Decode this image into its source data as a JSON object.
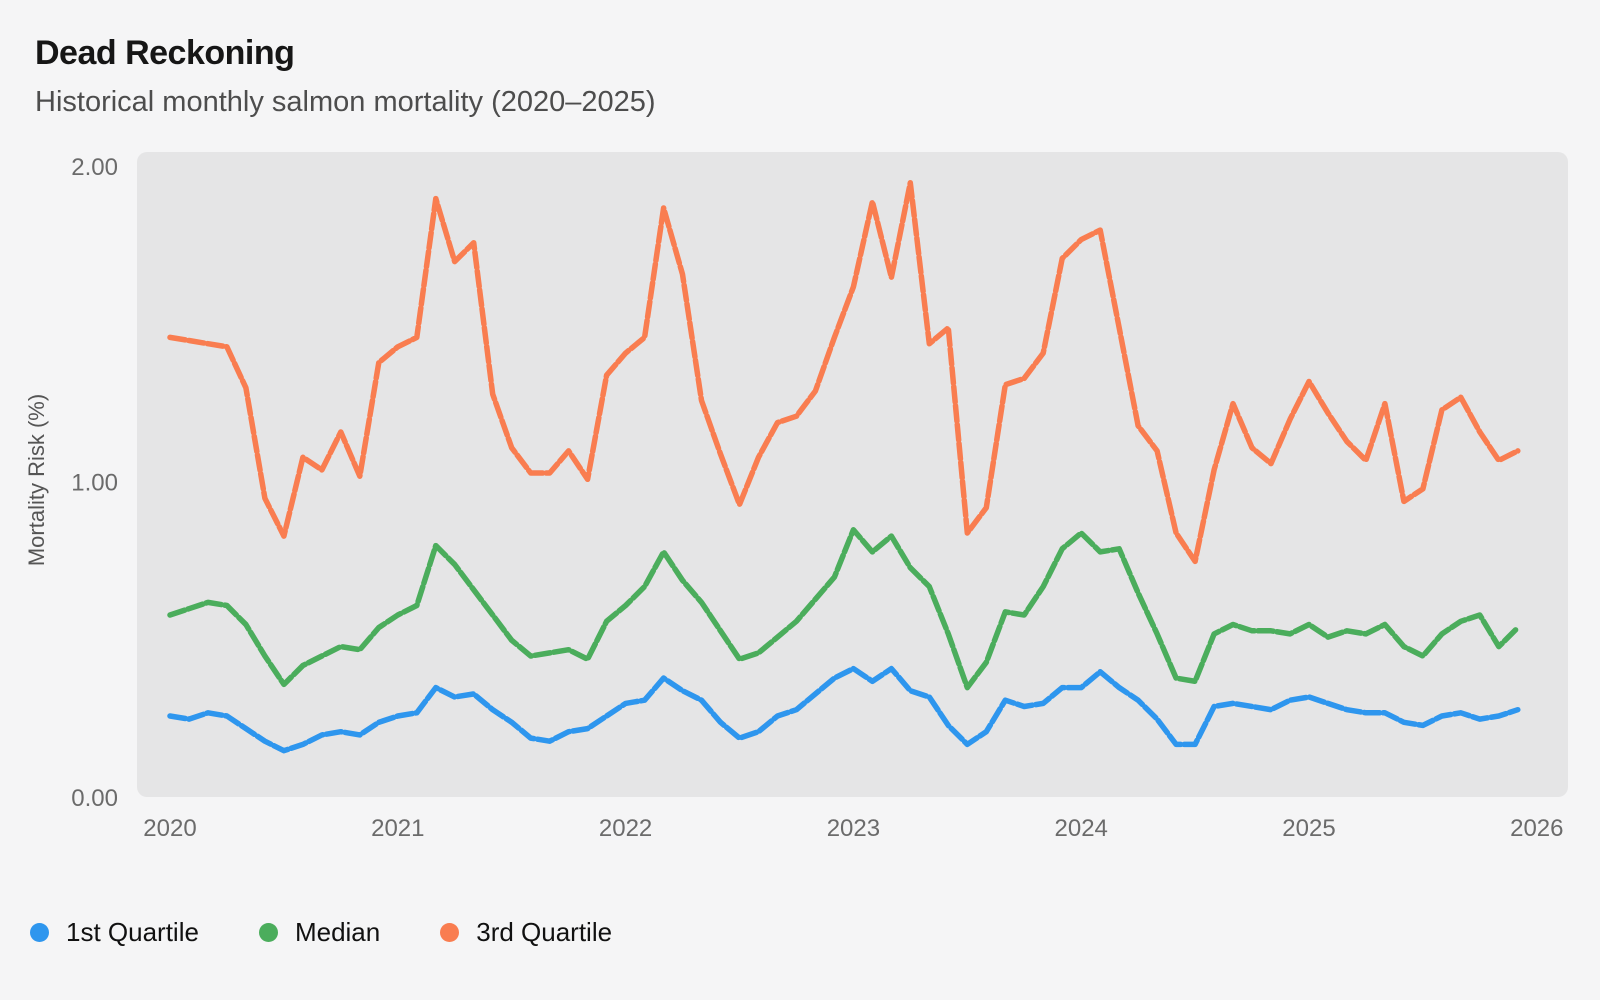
{
  "page": {
    "title": "Dead Reckoning",
    "subtitle": "Historical monthly salmon mortality (2020–2025)"
  },
  "chart_data": {
    "type": "line",
    "title": "Dead Reckoning",
    "subtitle": "Historical monthly salmon mortality (2020–2025)",
    "xlabel": "",
    "ylabel": "Mortality Risk (%)",
    "x_unit": "month",
    "x_start": "2020-01",
    "x_end": "2025-12",
    "xticks": [
      "2020",
      "2021",
      "2022",
      "2023",
      "2024",
      "2025",
      "2026"
    ],
    "yticks": [
      0,
      1,
      2
    ],
    "ytick_labels": [
      "0.00",
      "1.00",
      "2.00"
    ],
    "ylim": [
      0,
      2.05
    ],
    "grid": false,
    "legend_position": "bottom-left",
    "plot_bg": "#e5e5e6",
    "series": [
      {
        "name": "1st Quartile",
        "color": "#2e96ee",
        "values": [
          0.26,
          0.25,
          0.27,
          0.26,
          0.22,
          0.18,
          0.15,
          0.17,
          0.2,
          0.21,
          0.2,
          0.24,
          0.26,
          0.27,
          0.35,
          0.32,
          0.33,
          0.28,
          0.24,
          0.19,
          0.18,
          0.21,
          0.22,
          0.26,
          0.3,
          0.31,
          0.38,
          0.34,
          0.31,
          0.24,
          0.19,
          0.21,
          0.26,
          0.28,
          0.33,
          0.38,
          0.41,
          0.37,
          0.41,
          0.34,
          0.32,
          0.23,
          0.17,
          0.21,
          0.31,
          0.29,
          0.3,
          0.35,
          0.35,
          0.4,
          0.35,
          0.31,
          0.25,
          0.17,
          0.17,
          0.29,
          0.3,
          0.29,
          0.28,
          0.31,
          0.32,
          0.3,
          0.28,
          0.27,
          0.27,
          0.24,
          0.23,
          0.26,
          0.27,
          0.25,
          0.26,
          0.28
        ]
      },
      {
        "name": "Median",
        "color": "#4bad5c",
        "values": [
          0.58,
          0.6,
          0.62,
          0.61,
          0.55,
          0.45,
          0.36,
          0.42,
          0.45,
          0.48,
          0.47,
          0.54,
          0.58,
          0.61,
          0.8,
          0.74,
          0.66,
          0.58,
          0.5,
          0.45,
          0.46,
          0.47,
          0.44,
          0.56,
          0.61,
          0.67,
          0.78,
          0.69,
          0.62,
          0.53,
          0.44,
          0.46,
          0.51,
          0.56,
          0.63,
          0.7,
          0.85,
          0.78,
          0.83,
          0.73,
          0.67,
          0.52,
          0.35,
          0.43,
          0.59,
          0.58,
          0.67,
          0.79,
          0.84,
          0.78,
          0.79,
          0.65,
          0.52,
          0.38,
          0.37,
          0.52,
          0.55,
          0.53,
          0.53,
          0.52,
          0.55,
          0.51,
          0.53,
          0.52,
          0.55,
          0.48,
          0.45,
          0.52,
          0.56,
          0.58,
          0.48,
          0.54
        ]
      },
      {
        "name": "3rd Quartile",
        "color": "#f97d50",
        "values": [
          1.46,
          1.45,
          1.44,
          1.43,
          1.3,
          0.95,
          0.83,
          1.08,
          1.04,
          1.16,
          1.02,
          1.38,
          1.43,
          1.46,
          1.9,
          1.7,
          1.76,
          1.28,
          1.11,
          1.03,
          1.03,
          1.1,
          1.01,
          1.34,
          1.41,
          1.46,
          1.87,
          1.66,
          1.26,
          1.09,
          0.93,
          1.08,
          1.19,
          1.21,
          1.29,
          1.46,
          1.62,
          1.89,
          1.65,
          1.95,
          1.44,
          1.49,
          0.84,
          0.92,
          1.31,
          1.33,
          1.41,
          1.71,
          1.77,
          1.8,
          1.49,
          1.18,
          1.1,
          0.84,
          0.75,
          1.04,
          1.25,
          1.11,
          1.06,
          1.2,
          1.32,
          1.22,
          1.13,
          1.07,
          1.25,
          0.94,
          0.98,
          1.23,
          1.27,
          1.16,
          1.07,
          1.1
        ]
      }
    ]
  }
}
